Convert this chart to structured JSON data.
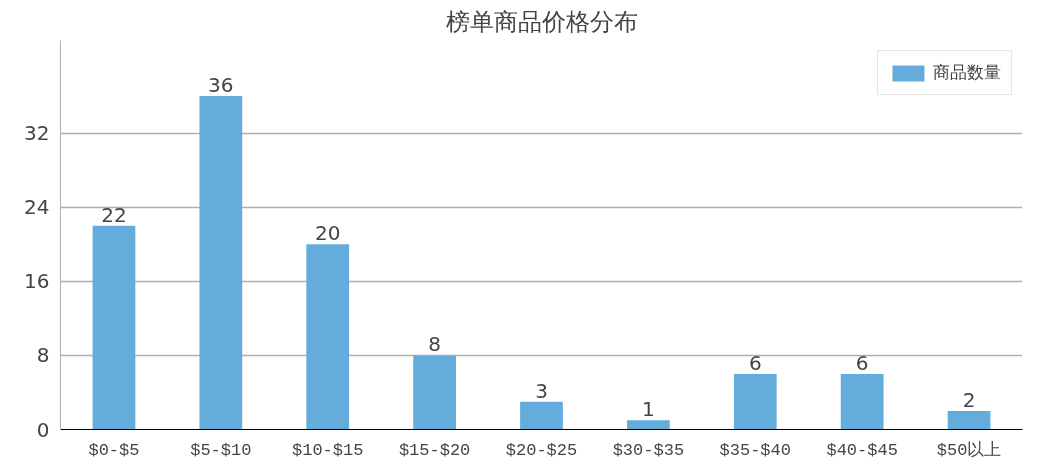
{
  "chart_data": {
    "type": "bar",
    "title": "榜单商品价格分布",
    "categories": [
      "$0-$5",
      "$5-$10",
      "$10-$15",
      "$15-$20",
      "$20-$25",
      "$30-$35",
      "$35-$40",
      "$40-$45",
      "$50以上"
    ],
    "series": [
      {
        "name": "商品数量",
        "color": "#64acdb",
        "values": [
          22,
          36,
          20,
          8,
          3,
          1,
          6,
          6,
          2
        ]
      }
    ],
    "ylim": [
      0,
      42
    ],
    "yticks": [
      0,
      8,
      16,
      24,
      32
    ],
    "grid": "y",
    "legend": "top right",
    "data_labels": true
  }
}
